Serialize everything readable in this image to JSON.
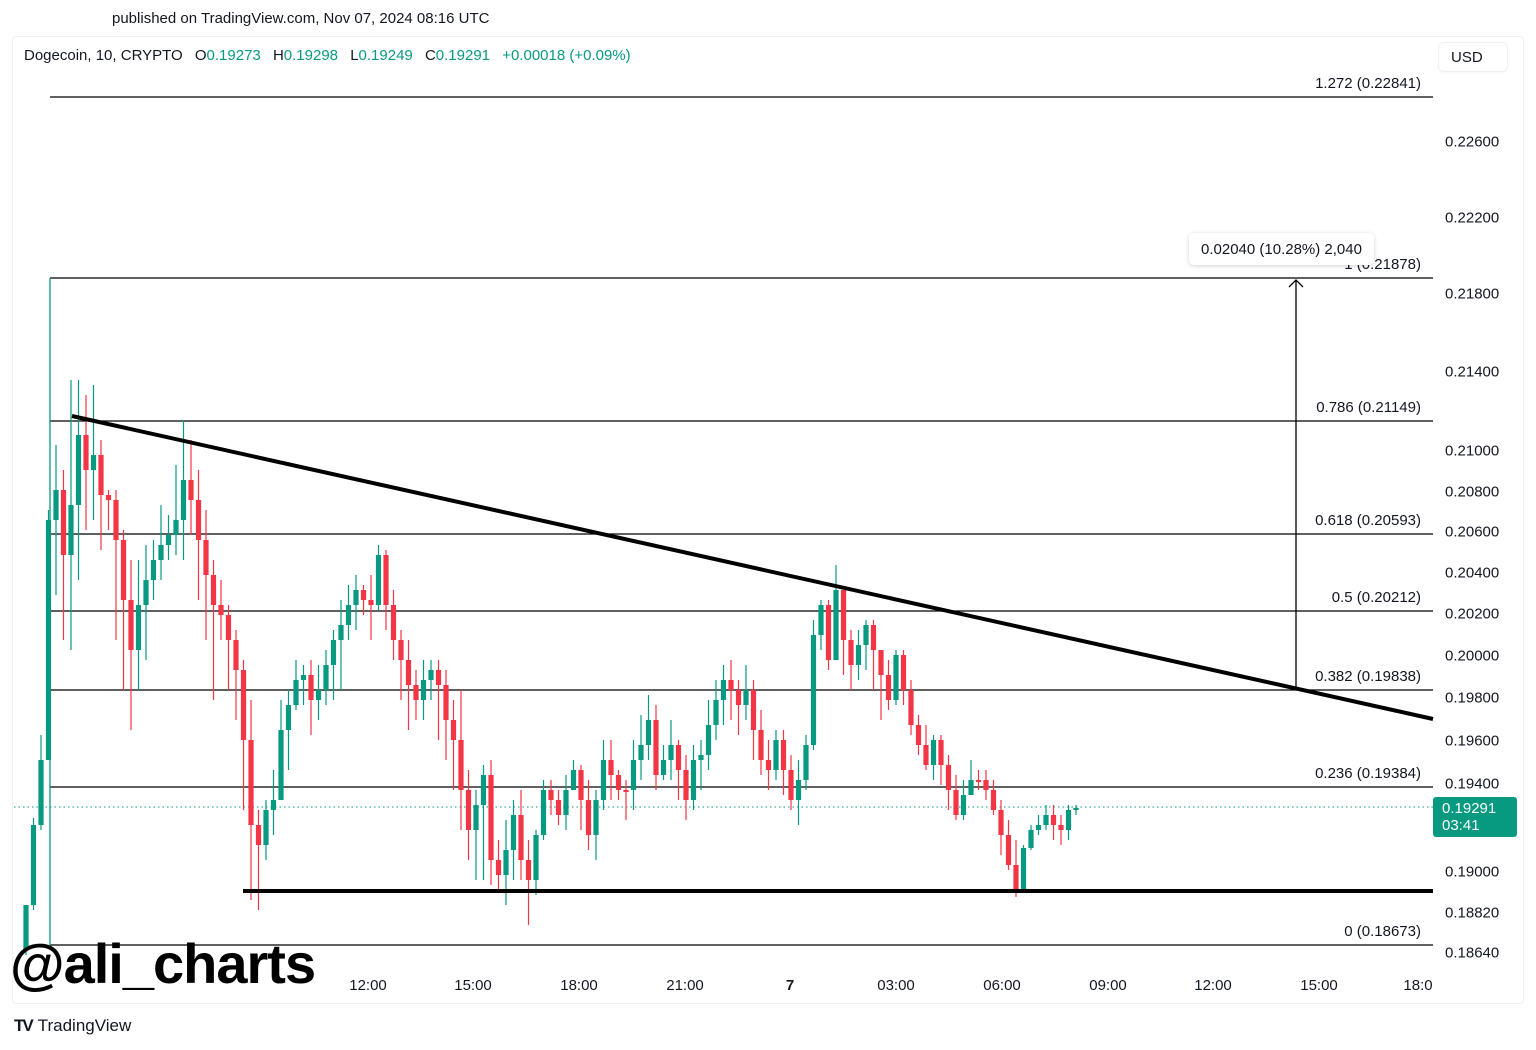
{
  "header": {
    "published": "published on TradingView.com, Nov 07, 2024 08:16 UTC"
  },
  "legend": {
    "symbol": "Dogecoin, 10, CRYPTO",
    "open_label": "O",
    "open": "0.19273",
    "high_label": "H",
    "high": "0.19298",
    "low_label": "L",
    "low": "0.19249",
    "close_label": "C",
    "close": "0.19291",
    "change": "+0.00018 (+0.09%)"
  },
  "currency_button": "USD",
  "price_tag": {
    "price": "0.19291",
    "countdown": "03:41"
  },
  "measure_tooltip": "0.02040 (10.28%) 2,040",
  "watermark": "@ali_charts",
  "footer": {
    "logo": "TV",
    "brand": "TradingView"
  },
  "colors": {
    "up": "#089981",
    "down": "#f23645",
    "line": "#000000",
    "text": "#131722"
  },
  "chart_data": {
    "type": "candlestick",
    "title": "Dogecoin, 10, CRYPTO",
    "xlabel": "",
    "ylabel": "USD",
    "y_ticks": [
      "0.22600",
      "0.22200",
      "0.21800",
      "0.21400",
      "0.21000",
      "0.20800",
      "0.20600",
      "0.20400",
      "0.20200",
      "0.20000",
      "0.19800",
      "0.19600",
      "0.19400",
      "0.19000",
      "0.18820",
      "0.18640"
    ],
    "x_ticks": [
      "12:00",
      "15:00",
      "18:00",
      "21:00",
      "7",
      "03:00",
      "06:00",
      "09:00",
      "12:00",
      "15:00",
      "18:0"
    ],
    "ylim": [
      0.1864,
      0.2284
    ],
    "grid": false,
    "fibonacci": [
      {
        "level": "1.272",
        "price": "0.22841",
        "label": "1.272 (0.22841)"
      },
      {
        "level": "1",
        "price": "0.21878",
        "label": "1 (0.21878)"
      },
      {
        "level": "0.786",
        "price": "0.21149",
        "label": "0.786 (0.21149)"
      },
      {
        "level": "0.618",
        "price": "0.20593",
        "label": "0.618 (0.20593)"
      },
      {
        "level": "0.5",
        "price": "0.20212",
        "label": "0.5 (0.20212)"
      },
      {
        "level": "0.382",
        "price": "0.19838",
        "label": "0.382 (0.19838)"
      },
      {
        "level": "0.236",
        "price": "0.19384",
        "label": "0.236 (0.19384)"
      },
      {
        "level": "0",
        "price": "0.18673",
        "label": "0 (0.18673)"
      }
    ],
    "descending_trendline": {
      "from": {
        "x": "~09:10 Nov 6",
        "price": 0.2118
      },
      "to": {
        "x": "~18:00 Nov 7",
        "price": 0.197
      }
    },
    "horizontal_support": {
      "price": 0.1889
    },
    "measure": {
      "change": 0.0204,
      "percent": "10.28%",
      "ticks": 2040,
      "from_price": 0.19838,
      "to_price": 0.21878
    },
    "last_price": 0.19291,
    "ohlc_last": {
      "open": 0.19273,
      "high": 0.19298,
      "low": 0.19249,
      "close": 0.19291
    }
  }
}
